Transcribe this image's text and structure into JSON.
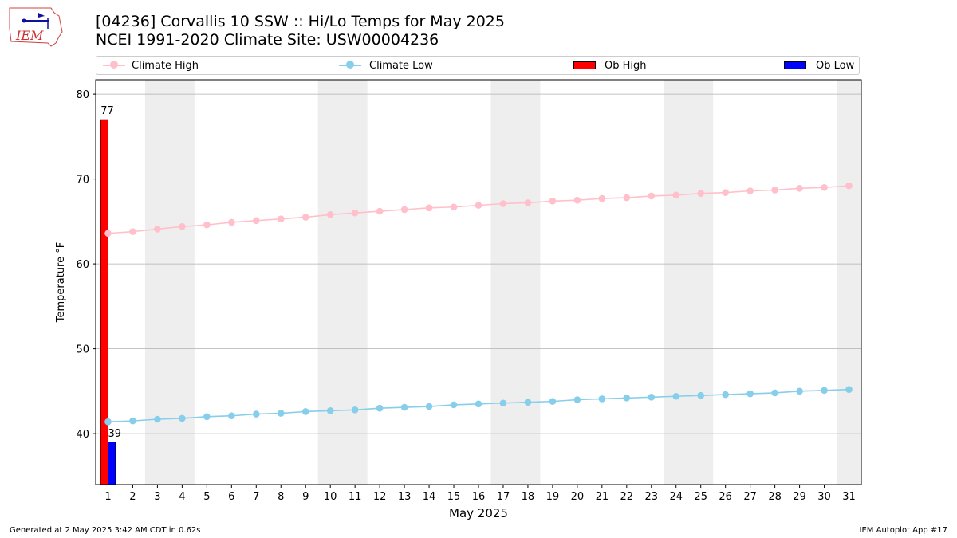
{
  "header": {
    "logo_text": "IEM",
    "title_line1": "[04236] Corvallis 10 SSW :: Hi/Lo Temps for May 2025",
    "title_line2": "NCEI 1991-2020 Climate Site: USW00004236"
  },
  "legend": {
    "climate_high": "Climate High",
    "climate_low": "Climate Low",
    "ob_high": "Ob High",
    "ob_low": "Ob Low"
  },
  "colors": {
    "climate_high": "#ffc0cb",
    "climate_low": "#87ceeb",
    "ob_high": "#ff0000",
    "ob_low": "#0000ff",
    "weekend_shade": "#eeeeee",
    "grid": "#b0b0b0"
  },
  "footer": {
    "left": "Generated at 2 May 2025 3:42 AM CDT in 0.62s",
    "right": "IEM Autoplot App #17"
  },
  "chart_data": {
    "type": "bar",
    "xlabel": "May 2025",
    "ylabel": "Temperature °F",
    "ylim": [
      34,
      81.7
    ],
    "xlim": [
      0.5,
      31.5
    ],
    "yticks": [
      40,
      50,
      60,
      70,
      80
    ],
    "xticks": [
      1,
      2,
      3,
      4,
      5,
      6,
      7,
      8,
      9,
      10,
      11,
      12,
      13,
      14,
      15,
      16,
      17,
      18,
      19,
      20,
      21,
      22,
      23,
      24,
      25,
      26,
      27,
      28,
      29,
      30,
      31
    ],
    "grid": "y",
    "legend_position": "top",
    "weekend_shading": [
      [
        3,
        4
      ],
      [
        10,
        11
      ],
      [
        17,
        18
      ],
      [
        24,
        25
      ],
      [
        31,
        31
      ]
    ],
    "series": [
      {
        "name": "Climate High",
        "kind": "line",
        "x": [
          1,
          2,
          3,
          4,
          5,
          6,
          7,
          8,
          9,
          10,
          11,
          12,
          13,
          14,
          15,
          16,
          17,
          18,
          19,
          20,
          21,
          22,
          23,
          24,
          25,
          26,
          27,
          28,
          29,
          30,
          31
        ],
        "values": [
          63.6,
          63.8,
          64.1,
          64.4,
          64.6,
          64.9,
          65.1,
          65.3,
          65.5,
          65.8,
          66.0,
          66.2,
          66.4,
          66.6,
          66.7,
          66.9,
          67.1,
          67.2,
          67.4,
          67.5,
          67.7,
          67.8,
          68.0,
          68.1,
          68.3,
          68.4,
          68.6,
          68.7,
          68.9,
          69.0,
          69.2
        ]
      },
      {
        "name": "Climate Low",
        "kind": "line",
        "x": [
          1,
          2,
          3,
          4,
          5,
          6,
          7,
          8,
          9,
          10,
          11,
          12,
          13,
          14,
          15,
          16,
          17,
          18,
          19,
          20,
          21,
          22,
          23,
          24,
          25,
          26,
          27,
          28,
          29,
          30,
          31
        ],
        "values": [
          41.4,
          41.5,
          41.7,
          41.8,
          42.0,
          42.1,
          42.3,
          42.4,
          42.6,
          42.7,
          42.8,
          43.0,
          43.1,
          43.2,
          43.4,
          43.5,
          43.6,
          43.7,
          43.8,
          44.0,
          44.1,
          44.2,
          44.3,
          44.4,
          44.5,
          44.6,
          44.7,
          44.8,
          45.0,
          45.1,
          45.2
        ]
      },
      {
        "name": "Ob High",
        "kind": "bar",
        "x": [
          1
        ],
        "values": [
          77
        ],
        "labels": [
          "77"
        ]
      },
      {
        "name": "Ob Low",
        "kind": "bar",
        "x": [
          1
        ],
        "values": [
          39
        ],
        "labels": [
          "39"
        ]
      }
    ]
  }
}
